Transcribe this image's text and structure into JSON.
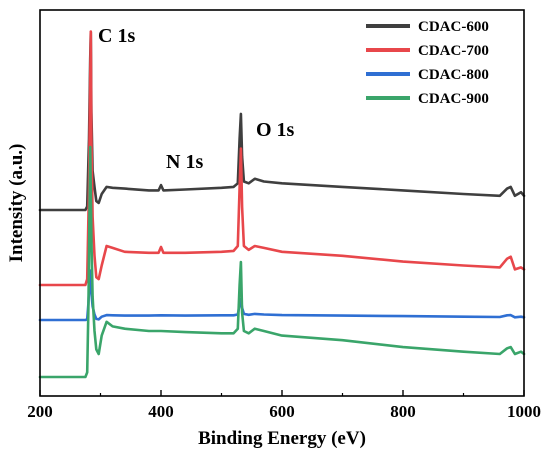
{
  "chart_data": {
    "type": "line",
    "xlabel": "Binding Energy (eV)",
    "ylabel": "Intensity (a.u.)",
    "xlim": [
      200,
      1000
    ],
    "x_ticks": [
      "200",
      "400",
      "600",
      "800",
      "1000"
    ],
    "y_ticks_labeled": false,
    "grid": false,
    "legend_position": "top-right",
    "annotations": [
      {
        "text": "C 1s",
        "x": 284
      },
      {
        "text": "N 1s",
        "x": 400
      },
      {
        "text": "O 1s",
        "x": 532
      }
    ],
    "series": [
      {
        "name": "CDAC-600",
        "color": "#3f3f3f",
        "points": [
          [
            200,
            0.0
          ],
          [
            275,
            0.0
          ],
          [
            278,
            0.02
          ],
          [
            281,
            0.4
          ],
          [
            283,
            0.85
          ],
          [
            284,
            1.0
          ],
          [
            285,
            0.55
          ],
          [
            287,
            0.22
          ],
          [
            290,
            0.13
          ],
          [
            293,
            0.05
          ],
          [
            297,
            0.04
          ],
          [
            302,
            0.09
          ],
          [
            310,
            0.13
          ],
          [
            320,
            0.125
          ],
          [
            340,
            0.12
          ],
          [
            380,
            0.11
          ],
          [
            396,
            0.11
          ],
          [
            400,
            0.14
          ],
          [
            404,
            0.11
          ],
          [
            440,
            0.115
          ],
          [
            500,
            0.125
          ],
          [
            520,
            0.13
          ],
          [
            527,
            0.15
          ],
          [
            530,
            0.4
          ],
          [
            532,
            0.54
          ],
          [
            534,
            0.3
          ],
          [
            537,
            0.16
          ],
          [
            545,
            0.15
          ],
          [
            555,
            0.175
          ],
          [
            570,
            0.16
          ],
          [
            600,
            0.15
          ],
          [
            700,
            0.13
          ],
          [
            800,
            0.11
          ],
          [
            900,
            0.09
          ],
          [
            960,
            0.08
          ],
          [
            972,
            0.12
          ],
          [
            978,
            0.13
          ],
          [
            985,
            0.08
          ],
          [
            995,
            0.1
          ],
          [
            1000,
            0.08
          ]
        ]
      },
      {
        "name": "CDAC-700",
        "color": "#e8474b",
        "points": [
          [
            200,
            0.0
          ],
          [
            275,
            0.0
          ],
          [
            278,
            0.03
          ],
          [
            281,
            0.5
          ],
          [
            283,
            1.05
          ],
          [
            284,
            1.3
          ],
          [
            285,
            0.75
          ],
          [
            287,
            0.35
          ],
          [
            290,
            0.15
          ],
          [
            293,
            0.04
          ],
          [
            297,
            0.03
          ],
          [
            302,
            0.1
          ],
          [
            310,
            0.2
          ],
          [
            320,
            0.19
          ],
          [
            340,
            0.17
          ],
          [
            380,
            0.165
          ],
          [
            396,
            0.165
          ],
          [
            400,
            0.195
          ],
          [
            404,
            0.165
          ],
          [
            440,
            0.165
          ],
          [
            500,
            0.17
          ],
          [
            520,
            0.175
          ],
          [
            527,
            0.2
          ],
          [
            530,
            0.5
          ],
          [
            532,
            0.7
          ],
          [
            534,
            0.4
          ],
          [
            537,
            0.2
          ],
          [
            545,
            0.18
          ],
          [
            555,
            0.2
          ],
          [
            570,
            0.19
          ],
          [
            600,
            0.17
          ],
          [
            700,
            0.15
          ],
          [
            800,
            0.12
          ],
          [
            900,
            0.1
          ],
          [
            960,
            0.09
          ],
          [
            972,
            0.135
          ],
          [
            978,
            0.145
          ],
          [
            985,
            0.08
          ],
          [
            995,
            0.09
          ],
          [
            1000,
            0.08
          ]
        ]
      },
      {
        "name": "CDAC-800",
        "color": "#2f6fd3",
        "points": [
          [
            200,
            0.0
          ],
          [
            275,
            0.0
          ],
          [
            278,
            0.01
          ],
          [
            280,
            0.3
          ],
          [
            282,
            0.75
          ],
          [
            283,
            0.9
          ],
          [
            285,
            0.5
          ],
          [
            287,
            0.25
          ],
          [
            290,
            0.1
          ],
          [
            293,
            0.02
          ],
          [
            297,
            0.01
          ],
          [
            302,
            0.06
          ],
          [
            310,
            0.09
          ],
          [
            320,
            0.085
          ],
          [
            340,
            0.08
          ],
          [
            380,
            0.08
          ],
          [
            400,
            0.085
          ],
          [
            440,
            0.08
          ],
          [
            500,
            0.085
          ],
          [
            520,
            0.085
          ],
          [
            527,
            0.1
          ],
          [
            530,
            0.28
          ],
          [
            532,
            0.38
          ],
          [
            534,
            0.22
          ],
          [
            537,
            0.11
          ],
          [
            545,
            0.095
          ],
          [
            555,
            0.11
          ],
          [
            570,
            0.1
          ],
          [
            600,
            0.09
          ],
          [
            700,
            0.08
          ],
          [
            800,
            0.07
          ],
          [
            900,
            0.06
          ],
          [
            960,
            0.055
          ],
          [
            972,
            0.085
          ],
          [
            978,
            0.09
          ],
          [
            985,
            0.05
          ],
          [
            995,
            0.06
          ],
          [
            1000,
            0.05
          ]
        ]
      },
      {
        "name": "CDAC-900",
        "color": "#3aa56a",
        "points": [
          [
            200,
            0.0
          ],
          [
            275,
            0.0
          ],
          [
            278,
            0.02
          ],
          [
            280,
            0.3
          ],
          [
            282,
            0.75
          ],
          [
            283,
            1.0
          ],
          [
            285,
            0.6
          ],
          [
            287,
            0.35
          ],
          [
            290,
            0.2
          ],
          [
            293,
            0.12
          ],
          [
            297,
            0.1
          ],
          [
            302,
            0.18
          ],
          [
            310,
            0.24
          ],
          [
            320,
            0.22
          ],
          [
            340,
            0.21
          ],
          [
            380,
            0.2
          ],
          [
            400,
            0.2
          ],
          [
            440,
            0.195
          ],
          [
            500,
            0.19
          ],
          [
            520,
            0.19
          ],
          [
            527,
            0.21
          ],
          [
            530,
            0.4
          ],
          [
            532,
            0.5
          ],
          [
            534,
            0.28
          ],
          [
            537,
            0.2
          ],
          [
            545,
            0.19
          ],
          [
            555,
            0.21
          ],
          [
            570,
            0.2
          ],
          [
            600,
            0.18
          ],
          [
            700,
            0.16
          ],
          [
            800,
            0.13
          ],
          [
            900,
            0.11
          ],
          [
            960,
            0.1
          ],
          [
            972,
            0.125
          ],
          [
            978,
            0.13
          ],
          [
            985,
            0.1
          ],
          [
            995,
            0.11
          ],
          [
            1000,
            0.1
          ]
        ]
      }
    ]
  }
}
